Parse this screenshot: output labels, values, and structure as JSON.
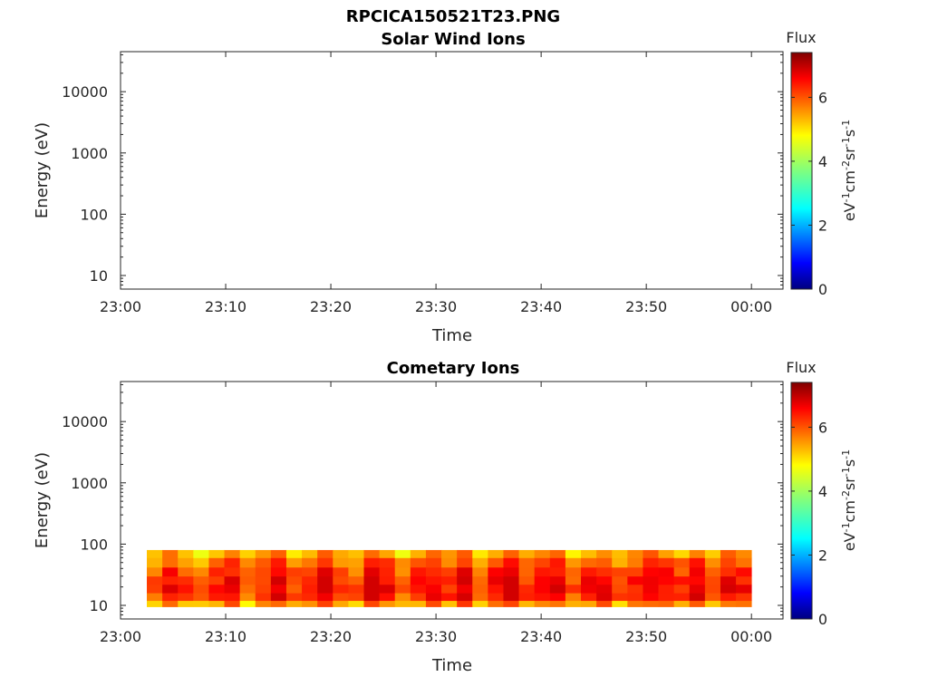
{
  "figure": {
    "filename": "RPCICA150521T23.PNG"
  },
  "colorbar": {
    "title": "Flux",
    "unit_parts": [
      "eV",
      "-1",
      "cm",
      "-2",
      "sr",
      "-1",
      "s",
      "-1"
    ],
    "ticks": [
      "0",
      "2",
      "4",
      "6"
    ],
    "range": [
      0,
      7.4
    ],
    "colormap": "jet"
  },
  "chart_data": [
    {
      "type": "heatmap",
      "title": "Solar Wind Ions",
      "xlabel": "Time",
      "ylabel": "Energy (eV)",
      "yscale": "log",
      "ylim": [
        6,
        45000
      ],
      "xlim": [
        "23:00",
        "00:03"
      ],
      "x_ticks": [
        "23:00",
        "23:10",
        "23:20",
        "23:30",
        "23:40",
        "23:50",
        "00:00"
      ],
      "y_ticks": [
        "10",
        "100",
        "1000",
        "10000"
      ],
      "cells": []
    },
    {
      "type": "heatmap",
      "title": "Cometary Ions",
      "xlabel": "Time",
      "ylabel": "Energy (eV)",
      "yscale": "log",
      "ylim": [
        6,
        45000
      ],
      "xlim": [
        "23:00",
        "00:03"
      ],
      "x_ticks": [
        "23:00",
        "23:10",
        "23:20",
        "23:30",
        "23:40",
        "23:50",
        "00:00"
      ],
      "y_ticks": [
        "10",
        "100",
        "1000",
        "10000"
      ],
      "time_start": "23:02:30",
      "time_end": "00:00:00",
      "energy_range_eV": [
        10,
        80
      ],
      "flux_range": [
        4.5,
        6.8
      ],
      "column_minutes": 1.5,
      "energy_bins_eV": [
        9.5,
        12,
        16,
        22,
        30,
        42,
        60,
        80
      ],
      "column_flux": [
        5.6,
        6.2,
        5.8,
        5.4,
        6.0,
        6.3,
        5.5,
        5.9,
        6.5,
        5.7,
        6.1,
        6.6,
        5.8,
        5.6,
        6.4,
        6.2,
        5.5,
        6.0,
        6.3,
        5.9,
        6.5,
        5.7,
        6.2,
        6.6,
        5.8,
        6.0,
        6.4,
        5.6,
        6.1,
        6.3,
        5.7,
        6.0,
        6.5,
        6.2,
        5.9,
        6.4,
        5.6,
        6.3,
        6.1
      ]
    }
  ]
}
